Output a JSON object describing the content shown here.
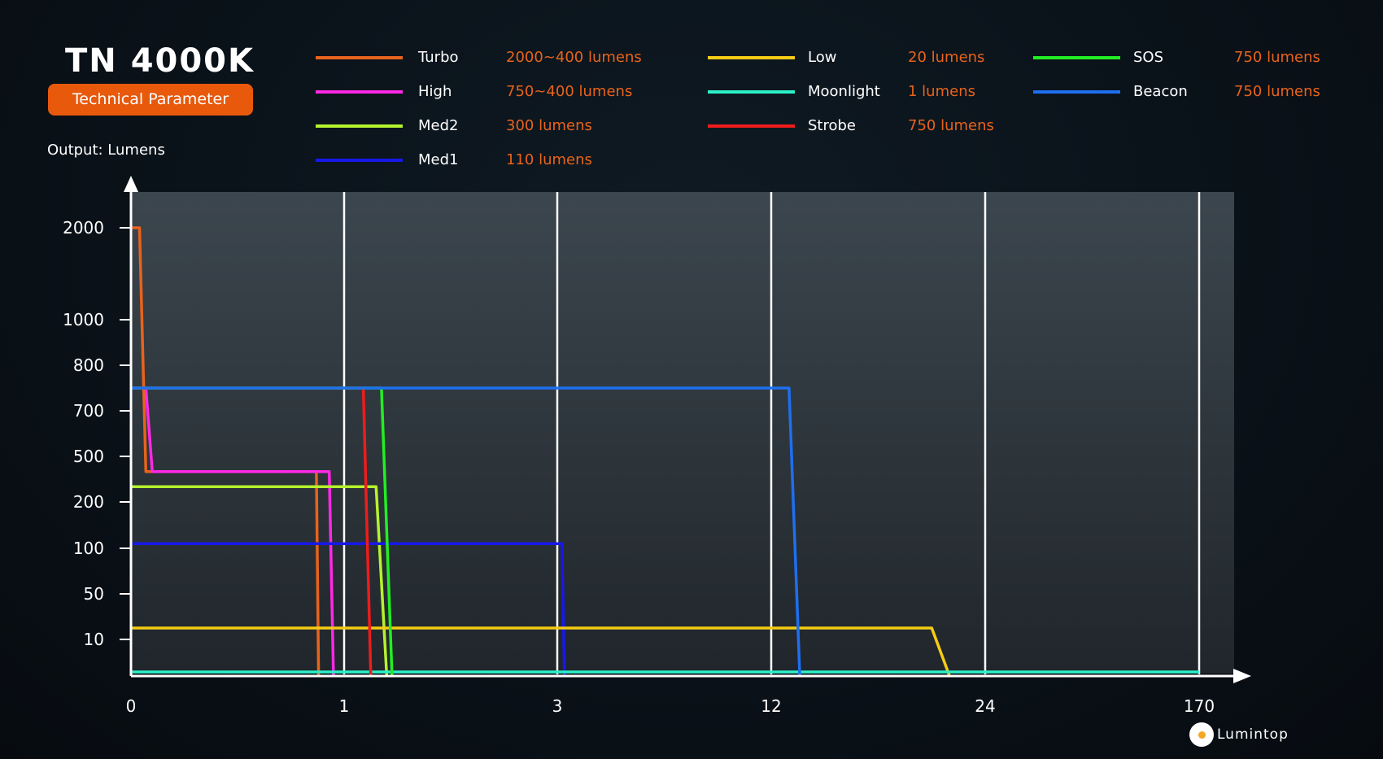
{
  "header": {
    "title": "TN 4000K",
    "badge": "Technical Parameter",
    "output_label": "Output: Lumens"
  },
  "footer": {
    "logo_text": "Lumintop"
  },
  "chart_data": {
    "type": "line",
    "title": "TN 4000K",
    "ylabel": "Output: Lumens",
    "xlabel": "",
    "x_ticks": [
      "0",
      "1",
      "3",
      "12",
      "24",
      "170"
    ],
    "y_ticks": [
      "10",
      "50",
      "100",
      "200",
      "500",
      "700",
      "800",
      "1000",
      "2000"
    ],
    "grid": "vertical",
    "legend_placement": "top",
    "series": [
      {
        "name": "Turbo",
        "spec": "2000~400 lumens",
        "color": "#e8631c",
        "points": [
          [
            0,
            2000
          ],
          [
            0.04,
            2000
          ],
          [
            0.07,
            400
          ],
          [
            0.87,
            400
          ],
          [
            0.88,
            0
          ]
        ]
      },
      {
        "name": "High",
        "spec": "750~400 lumens",
        "color": "#ff28e6",
        "points": [
          [
            0,
            750
          ],
          [
            0.07,
            750
          ],
          [
            0.1,
            400
          ],
          [
            0.93,
            400
          ],
          [
            0.95,
            0
          ]
        ]
      },
      {
        "name": "Med2",
        "spec": "300 lumens",
        "color": "#b5f22f",
        "points": [
          [
            0,
            300
          ],
          [
            1.3,
            300
          ],
          [
            1.4,
            0
          ]
        ]
      },
      {
        "name": "Med1",
        "spec": "110 lumens",
        "color": "#1818e8",
        "points": [
          [
            0,
            110
          ],
          [
            3.2,
            110
          ],
          [
            3.3,
            0
          ]
        ]
      },
      {
        "name": "Low",
        "spec": "20 lumens",
        "color": "#f5cc14",
        "points": [
          [
            0,
            20
          ],
          [
            21,
            20
          ],
          [
            22,
            0
          ]
        ]
      },
      {
        "name": "Moonlight",
        "spec": "1 lumens",
        "color": "#2cf0c8",
        "points": [
          [
            0,
            1
          ],
          [
            170,
            1
          ]
        ]
      },
      {
        "name": "Strobe",
        "spec": "750 lumens",
        "color": "#ee1c1c",
        "points": [
          [
            0,
            750
          ],
          [
            1.18,
            750
          ],
          [
            1.25,
            0
          ]
        ]
      },
      {
        "name": "SOS",
        "spec": "750 lumens",
        "color": "#22ee22",
        "points": [
          [
            0,
            750
          ],
          [
            1.35,
            750
          ],
          [
            1.45,
            0
          ]
        ]
      },
      {
        "name": "Beacon",
        "spec": "750 lumens",
        "color": "#1e6ff0",
        "points": [
          [
            0,
            750
          ],
          [
            13,
            750
          ],
          [
            13.6,
            0
          ]
        ]
      }
    ]
  }
}
